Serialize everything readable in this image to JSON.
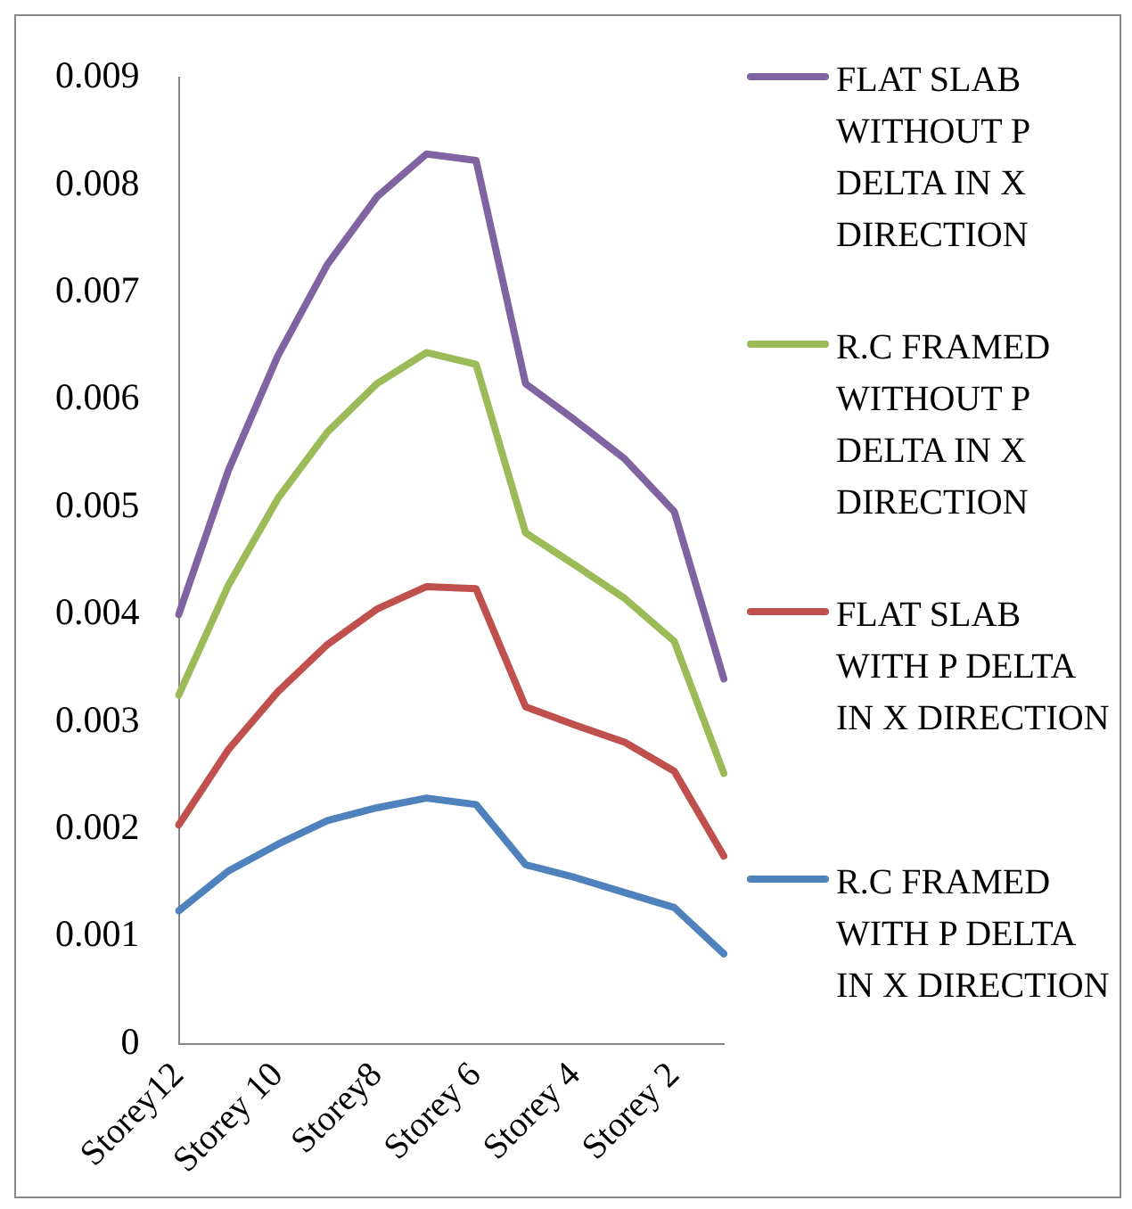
{
  "chart_data": {
    "type": "line",
    "categories": [
      "Storey12",
      null,
      "Storey 10",
      null,
      "Storey8",
      null,
      "Storey 6",
      null,
      "Storey 4",
      null,
      "Storey 2",
      null
    ],
    "series": [
      {
        "name": "FLAT SLAB WITHOUT P DELTA IN X DIRECTION",
        "color": "#8064a2",
        "values": [
          0.004,
          0.00534,
          0.00641,
          0.00726,
          0.00789,
          0.00829,
          0.00823,
          0.00615,
          0.00581,
          0.00545,
          0.00496,
          0.0034
        ]
      },
      {
        "name": "R.C FRAMED WITHOUT P DELTA IN X DIRECTION",
        "color": "#9bbb59",
        "values": [
          0.00325,
          0.00427,
          0.00508,
          0.0057,
          0.00615,
          0.00644,
          0.00633,
          0.00476,
          0.00446,
          0.00415,
          0.00375,
          0.00252
        ]
      },
      {
        "name": "FLAT SLAB WITH P DELTA IN X DIRECTION",
        "color": "#c0504d",
        "values": [
          0.00204,
          0.00274,
          0.00328,
          0.00372,
          0.00405,
          0.00426,
          0.00424,
          0.00314,
          0.00297,
          0.00281,
          0.00254,
          0.00175
        ]
      },
      {
        "name": "R.C FRAMED WITH P DELTA IN X DIRECTION",
        "color": "#4f81bd",
        "values": [
          0.00124,
          0.00161,
          0.00186,
          0.00208,
          0.0022,
          0.00229,
          0.00223,
          0.00167,
          0.00155,
          0.00141,
          0.00127,
          0.00084
        ]
      }
    ],
    "ylim": [
      0,
      0.009
    ],
    "yticks": [
      0,
      0.001,
      0.002,
      0.003,
      0.004,
      0.005,
      0.006,
      0.007,
      0.008,
      0.009
    ],
    "grid": false,
    "legend": "right",
    "marker": "none",
    "line_style": "solid"
  }
}
